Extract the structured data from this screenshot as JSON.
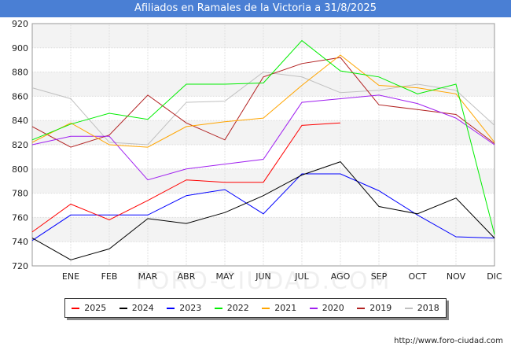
{
  "chart_data": {
    "type": "line",
    "title": "Afiliados en Ramales de la Victoria a 31/8/2025",
    "xlabel": "",
    "ylabel": "",
    "categories": [
      "",
      "ENE",
      "FEB",
      "MAR",
      "ABR",
      "MAY",
      "JUN",
      "JUL",
      "AGO",
      "SEP",
      "OCT",
      "NOV",
      "DIC"
    ],
    "ylim": [
      720,
      920
    ],
    "yticks": [
      720,
      740,
      760,
      780,
      800,
      820,
      840,
      860,
      880,
      900,
      920
    ],
    "grid": true,
    "legend_position": "bottom",
    "series": [
      {
        "name": "2025",
        "color": "#ff0000",
        "values": [
          748,
          771,
          758,
          774,
          791,
          789,
          789,
          836,
          838,
          null,
          null,
          null,
          null
        ]
      },
      {
        "name": "2024",
        "color": "#000000",
        "values": [
          743,
          725,
          734,
          759,
          755,
          764,
          778,
          795,
          806,
          769,
          763,
          776,
          743
        ]
      },
      {
        "name": "2023",
        "color": "#0000ff",
        "values": [
          741,
          762,
          762,
          762,
          778,
          783,
          763,
          796,
          796,
          782,
          762,
          744,
          743
        ]
      },
      {
        "name": "2022",
        "color": "#00ee00",
        "values": [
          824,
          837,
          846,
          841,
          870,
          870,
          871,
          906,
          881,
          876,
          862,
          870,
          746
        ]
      },
      {
        "name": "2021",
        "color": "#ffa500",
        "values": [
          822,
          838,
          820,
          818,
          835,
          839,
          842,
          869,
          894,
          869,
          867,
          862,
          822
        ]
      },
      {
        "name": "2020",
        "color": "#a020f0",
        "values": [
          820,
          827,
          827,
          791,
          800,
          804,
          808,
          855,
          858,
          861,
          854,
          842,
          820
        ]
      },
      {
        "name": "2019",
        "color": "#b22222",
        "values": [
          835,
          818,
          828,
          861,
          838,
          824,
          876,
          887,
          892,
          853,
          849,
          845,
          821
        ]
      },
      {
        "name": "2018",
        "color": "#c0c0c0",
        "values": [
          867,
          858,
          822,
          820,
          855,
          856,
          880,
          876,
          863,
          865,
          870,
          865,
          836
        ]
      }
    ]
  },
  "watermark": "FORO-CIUDAD.COM",
  "source": "http://www.foro-ciudad.com"
}
